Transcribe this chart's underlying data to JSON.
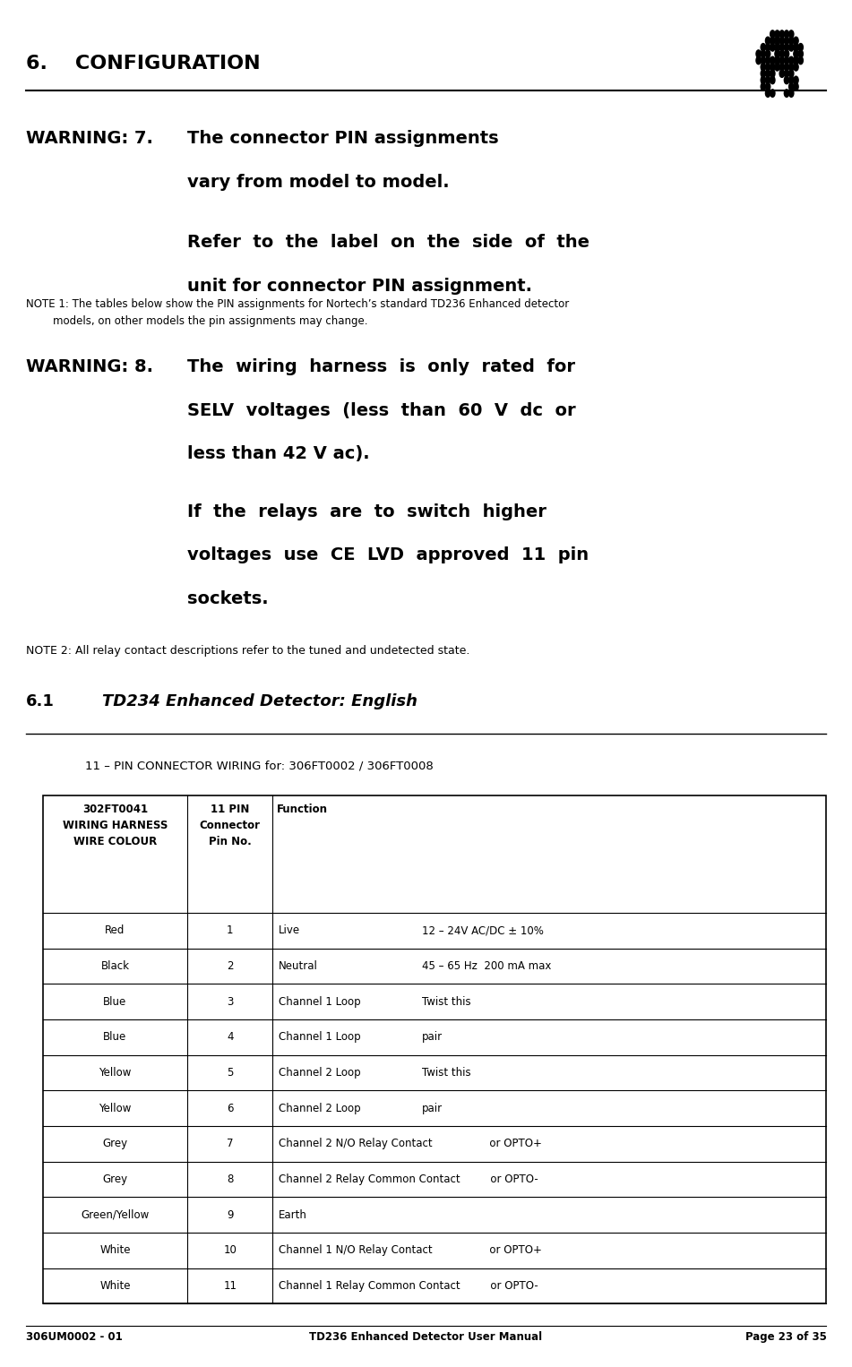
{
  "page_width": 9.51,
  "page_height": 15.26,
  "bg_color": "#ffffff",
  "header_title": "6.    CONFIGURATION",
  "footer_left": "306UM0002 - 01",
  "footer_center": "TD236 Enhanced Detector User Manual",
  "footer_right": "Page 23 of 35",
  "warning7_label": "WARNING: 7.",
  "warning7_line1": "The connector PIN assignments",
  "warning7_line2": "vary from model to model.",
  "warning7_line3": "Refer  to  the  label  on  the  side  of  the",
  "warning7_line4": "unit for connector PIN assignment.",
  "note1_text": "NOTE 1: The tables below show the PIN assignments for Nortech’s standard TD236 Enhanced detector\n        models, on other models the pin assignments may change.",
  "warning8_label": "WARNING: 8.",
  "warning8_line1": "The  wiring  harness  is  only  rated  for",
  "warning8_line2": "SELV  voltages  (less  than  60  V  dc  or",
  "warning8_line3": "less than 42 V ac).",
  "warning8_line4": "If  the  relays  are  to  switch  higher",
  "warning8_line5": "voltages  use  CE  LVD  approved  11  pin",
  "warning8_line6": "sockets.",
  "note2_text": "NOTE 2: All relay contact descriptions refer to the tuned and undetected state.",
  "section_label": "6.1",
  "section_title": "TD234 Enhanced Detector: English",
  "connector_title": "11 – PIN CONNECTOR WIRING for: 306FT0002 / 306FT0008",
  "table_headers": [
    "302FT0041\nWIRING HARNESS\nWIRE COLOUR",
    "11 PIN\nConnector\nPin No.",
    "Function"
  ],
  "table_rows": [
    [
      "Red",
      "1",
      "Live",
      "12 – 24V AC/DC ± 10%"
    ],
    [
      "Black",
      "2",
      "Neutral",
      "45 – 65 Hz  200 mA max"
    ],
    [
      "Blue",
      "3",
      "Channel 1 Loop",
      "Twist this"
    ],
    [
      "Blue",
      "4",
      "Channel 1 Loop",
      "pair"
    ],
    [
      "Yellow",
      "5",
      "Channel 2 Loop",
      "Twist this"
    ],
    [
      "Yellow",
      "6",
      "Channel 2 Loop",
      "pair"
    ],
    [
      "Grey",
      "7",
      "Channel 2 N/O Relay Contact                 or OPTO+",
      ""
    ],
    [
      "Grey",
      "8",
      "Channel 2 Relay Common Contact         or OPTO-",
      ""
    ],
    [
      "Green/Yellow",
      "9",
      "Earth",
      ""
    ],
    [
      "White",
      "10",
      "Channel 1 N/O Relay Contact                 or OPTO+",
      ""
    ],
    [
      "White",
      "11",
      "Channel 1 Relay Common Contact         or OPTO-",
      ""
    ]
  ]
}
